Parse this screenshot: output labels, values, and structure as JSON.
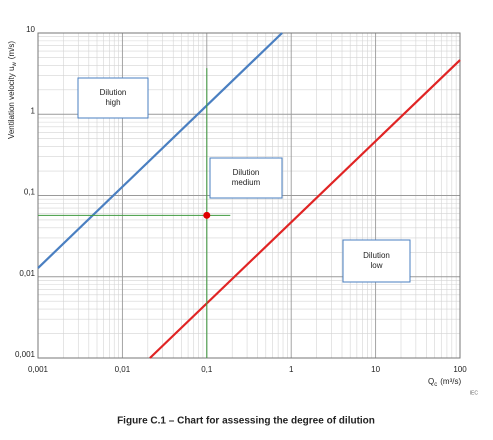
{
  "chart_data": {
    "type": "line",
    "title": "Figure C.1 – Chart for assessing the degree of dilution",
    "ylabel": "Ventilation velocity u",
    "ylabel_sub": "w",
    "ylabel_unit": "(m/s)",
    "xlabel": "Q",
    "xlabel_sub": "c",
    "xlabel_unit": "(m³/s)",
    "source": "IEC",
    "xscale": "log",
    "yscale": "log",
    "xlim": [
      0.001,
      100
    ],
    "ylim": [
      0.001,
      10
    ],
    "xticks": [
      {
        "value": 0.001,
        "label": "0,001"
      },
      {
        "value": 0.01,
        "label": "0,01"
      },
      {
        "value": 0.1,
        "label": "0,1"
      },
      1,
      10,
      100
    ],
    "yticks": [
      {
        "value": 0.001,
        "label": "0,001"
      },
      {
        "value": 0.01,
        "label": "0,01"
      },
      {
        "value": 0.1,
        "label": "0,1"
      },
      1,
      10
    ],
    "grid": true,
    "minor_grid": true,
    "series": [
      {
        "color": "#4a7fc1",
        "x": [
          0.001,
          0.78
        ],
        "values": [
          0.0128,
          10
        ]
      },
      {
        "color": "#e02424",
        "x": [
          0.0212,
          100
        ],
        "values": [
          0.001,
          4.65
        ]
      },
      {
        "color": "#3f9a3f",
        "x": [
          0.1,
          0.1
        ],
        "values": [
          0.001,
          3.7
        ]
      },
      {
        "color": "#3f9a3f",
        "x": [
          0.001,
          0.19
        ],
        "values": [
          0.057,
          0.057
        ]
      }
    ],
    "points": [
      {
        "color": "#e00000",
        "x": [
          0.1
        ],
        "values": [
          0.057
        ]
      }
    ],
    "annotations": [
      {
        "lines": [
          "Dilution",
          "high"
        ]
      },
      {
        "lines": [
          "Dilution",
          "medium"
        ]
      },
      {
        "lines": [
          "Dilution",
          "low"
        ]
      }
    ]
  }
}
